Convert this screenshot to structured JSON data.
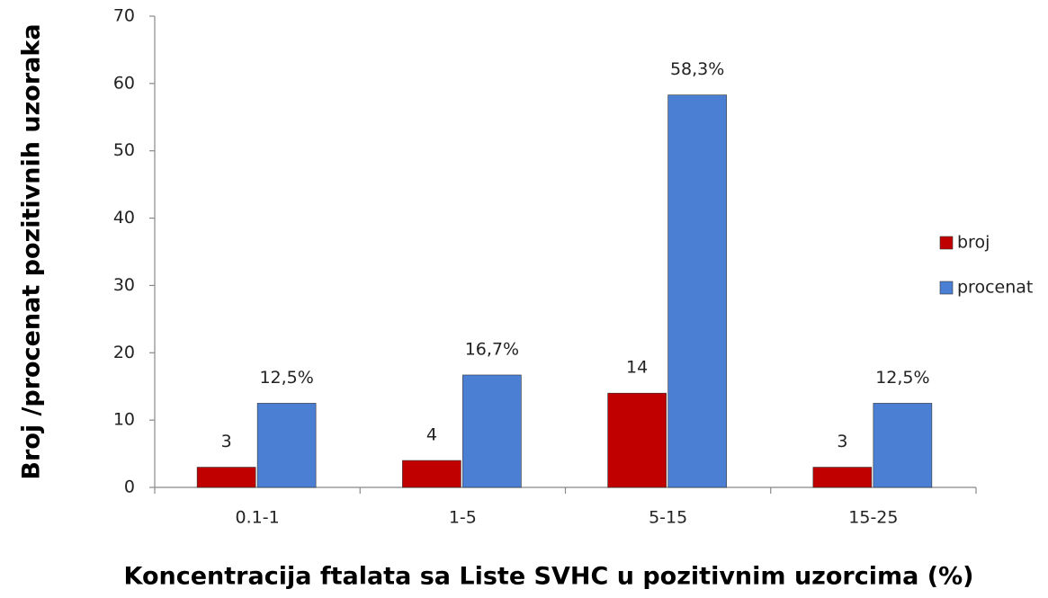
{
  "chart_data": {
    "type": "bar",
    "x_label": "Koncentracija ftalata sa Liste SVHC u pozitivnim uzorcima (%)",
    "y_label": "Broj /procenat pozitivnih uzoraka",
    "categories": [
      "0.1-1",
      "1-5",
      "5-15",
      "15-25"
    ],
    "series": [
      {
        "name": "broj",
        "color": "#c00000",
        "values": [
          3,
          4,
          14,
          3
        ]
      },
      {
        "name": "procenat",
        "color": "#4a7fd4",
        "values": [
          12.5,
          16.7,
          58.3,
          12.5
        ],
        "value_labels": [
          "12,5%",
          "16,7%",
          "58,3%",
          "12,5%"
        ]
      }
    ],
    "ylim": [
      0,
      70
    ],
    "yticks": [
      0,
      10,
      20,
      30,
      40,
      50,
      60,
      70
    ],
    "grid": false,
    "legend": "right"
  }
}
